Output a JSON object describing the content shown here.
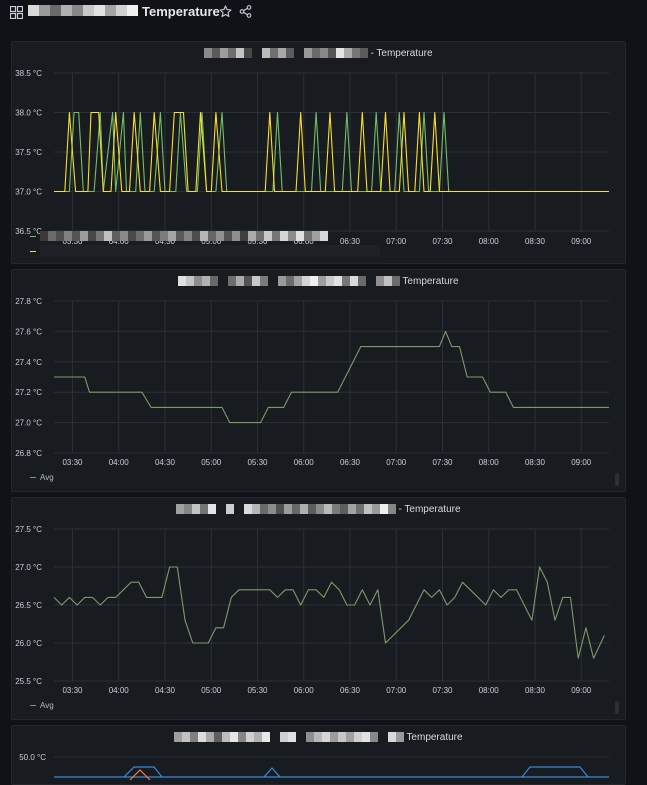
{
  "header": {
    "title": "Temperature",
    "icons": {
      "apps": "apps-icon",
      "star": "star-icon",
      "share": "share-icon"
    }
  },
  "colors": {
    "background": "#111217",
    "panel": "#181b1f",
    "grid": "#2c2f35",
    "green": "#73bf69",
    "yellow": "#fade2a",
    "green_dim": "#7b9c6a",
    "yellow_dim": "#c9a84a",
    "blue": "#3a8ad6",
    "orange": "#ff7a3d"
  },
  "panels": [
    {
      "title": "- Temperature",
      "legend": []
    },
    {
      "title": "Temperature",
      "legend": [
        "Avg"
      ]
    },
    {
      "title": "- Temperature",
      "legend": [
        "Avg"
      ]
    },
    {
      "title": "Temperature",
      "legend": []
    }
  ],
  "chart_data": [
    {
      "type": "line",
      "x_ticks": [
        "03:30",
        "04:00",
        "04:30",
        "05:00",
        "05:30",
        "06:00",
        "06:30",
        "07:00",
        "07:30",
        "08:00",
        "08:30",
        "09:00"
      ],
      "y_ticks": [
        "36.5 °C",
        "37.0 °C",
        "37.5 °C",
        "38.0 °C",
        "38.5 °C"
      ],
      "ylim": [
        36.5,
        38.5
      ],
      "xlim": [
        "03:18",
        "09:18"
      ],
      "series": [
        {
          "color": "green",
          "points": [
            [
              "03:18",
              37
            ],
            [
              "03:28",
              37
            ],
            [
              "03:31",
              38
            ],
            [
              "03:34",
              38
            ],
            [
              "03:37",
              37
            ],
            [
              "03:44",
              37
            ],
            [
              "03:48",
              38
            ],
            [
              "03:50",
              37
            ],
            [
              "03:56",
              38
            ],
            [
              "03:58",
              37
            ],
            [
              "04:03",
              38
            ],
            [
              "04:05",
              37
            ],
            [
              "04:11",
              37
            ],
            [
              "04:14",
              38
            ],
            [
              "04:17",
              37
            ],
            [
              "04:23",
              37
            ],
            [
              "04:27",
              38
            ],
            [
              "04:30",
              37
            ],
            [
              "04:37",
              37
            ],
            [
              "04:40",
              38
            ],
            [
              "04:44",
              37
            ],
            [
              "04:51",
              37
            ],
            [
              "04:54",
              38
            ],
            [
              "04:57",
              37
            ],
            [
              "05:03",
              37
            ],
            [
              "05:07",
              38
            ],
            [
              "05:10",
              37
            ],
            [
              "05:40",
              37
            ],
            [
              "05:43",
              38
            ],
            [
              "05:46",
              37
            ],
            [
              "06:05",
              37
            ],
            [
              "06:08",
              38
            ],
            [
              "06:11",
              37
            ],
            [
              "06:25",
              37
            ],
            [
              "06:28",
              38
            ],
            [
              "06:31",
              37
            ],
            [
              "06:44",
              37
            ],
            [
              "06:47",
              38
            ],
            [
              "06:50",
              37
            ],
            [
              "06:59",
              37
            ],
            [
              "07:02",
              38
            ],
            [
              "07:05",
              37
            ],
            [
              "07:15",
              37
            ],
            [
              "07:18",
              38
            ],
            [
              "07:21",
              37
            ],
            [
              "07:28",
              37
            ],
            [
              "07:31",
              38
            ],
            [
              "07:34",
              37
            ],
            [
              "09:18",
              37
            ]
          ]
        },
        {
          "color": "yellow",
          "points": [
            [
              "03:18",
              37
            ],
            [
              "03:25",
              37
            ],
            [
              "03:28",
              38
            ],
            [
              "03:32",
              37
            ],
            [
              "03:40",
              37
            ],
            [
              "03:42",
              38
            ],
            [
              "03:47",
              38
            ],
            [
              "03:50",
              37
            ],
            [
              "03:55",
              37
            ],
            [
              "03:58",
              38
            ],
            [
              "04:02",
              37
            ],
            [
              "04:07",
              37
            ],
            [
              "04:10",
              38
            ],
            [
              "04:14",
              37
            ],
            [
              "04:20",
              37
            ],
            [
              "04:23",
              38
            ],
            [
              "04:27",
              37
            ],
            [
              "04:33",
              37
            ],
            [
              "04:36",
              38
            ],
            [
              "04:42",
              38
            ],
            [
              "04:45",
              37
            ],
            [
              "04:50",
              37
            ],
            [
              "04:53",
              38
            ],
            [
              "04:57",
              37
            ],
            [
              "05:00",
              37
            ],
            [
              "05:03",
              38
            ],
            [
              "05:07",
              37
            ],
            [
              "05:35",
              37
            ],
            [
              "05:38",
              38
            ],
            [
              "05:41",
              37
            ],
            [
              "05:55",
              37
            ],
            [
              "05:58",
              38
            ],
            [
              "06:01",
              37
            ],
            [
              "06:14",
              37
            ],
            [
              "06:17",
              38
            ],
            [
              "06:20",
              37
            ],
            [
              "06:35",
              37
            ],
            [
              "06:38",
              38
            ],
            [
              "06:41",
              37
            ],
            [
              "06:50",
              37
            ],
            [
              "06:53",
              38
            ],
            [
              "06:56",
              37
            ],
            [
              "07:02",
              37
            ],
            [
              "07:05",
              38
            ],
            [
              "07:08",
              37
            ],
            [
              "07:12",
              37
            ],
            [
              "07:15",
              38
            ],
            [
              "07:18",
              37
            ],
            [
              "07:22",
              37
            ],
            [
              "07:25",
              38
            ],
            [
              "07:28",
              37
            ],
            [
              "09:18",
              37
            ]
          ]
        }
      ]
    },
    {
      "type": "line",
      "x_ticks": [
        "03:30",
        "04:00",
        "04:30",
        "05:00",
        "05:30",
        "06:00",
        "06:30",
        "07:00",
        "07:30",
        "08:00",
        "08:30",
        "09:00"
      ],
      "y_ticks": [
        "26.8 °C",
        "27.0 °C",
        "27.2 °C",
        "27.4 °C",
        "27.6 °C",
        "27.8 °C"
      ],
      "ylim": [
        26.8,
        27.8
      ],
      "xlim": [
        "03:18",
        "09:18"
      ],
      "legend": "bottom-left",
      "series": [
        {
          "name": "Avg",
          "color": "green_dim",
          "points": [
            [
              "03:18",
              27.3
            ],
            [
              "03:38",
              27.3
            ],
            [
              "03:41",
              27.2
            ],
            [
              "04:15",
              27.2
            ],
            [
              "04:21",
              27.1
            ],
            [
              "05:07",
              27.1
            ],
            [
              "05:12",
              27.0
            ],
            [
              "05:32",
              27.0
            ],
            [
              "05:37",
              27.1
            ],
            [
              "05:47",
              27.1
            ],
            [
              "05:52",
              27.2
            ],
            [
              "06:22",
              27.2
            ],
            [
              "06:37",
              27.5
            ],
            [
              "07:28",
              27.5
            ],
            [
              "07:32",
              27.6
            ],
            [
              "07:36",
              27.5
            ],
            [
              "07:41",
              27.5
            ],
            [
              "07:46",
              27.3
            ],
            [
              "07:56",
              27.3
            ],
            [
              "08:01",
              27.2
            ],
            [
              "08:11",
              27.2
            ],
            [
              "08:16",
              27.1
            ],
            [
              "09:18",
              27.1
            ]
          ]
        }
      ]
    },
    {
      "type": "line",
      "x_ticks": [
        "03:30",
        "04:00",
        "04:30",
        "05:00",
        "05:30",
        "06:00",
        "06:30",
        "07:00",
        "07:30",
        "08:00",
        "08:30",
        "09:00"
      ],
      "y_ticks": [
        "25.5 °C",
        "26.0 °C",
        "26.5 °C",
        "27.0 °C",
        "27.5 °C"
      ],
      "ylim": [
        25.5,
        27.5
      ],
      "xlim": [
        "03:18",
        "09:18"
      ],
      "legend": "bottom-left",
      "series": [
        {
          "name": "Avg",
          "color": "green_dim",
          "points": [
            [
              "03:18",
              26.6
            ],
            [
              "03:23",
              26.5
            ],
            [
              "03:28",
              26.6
            ],
            [
              "03:33",
              26.5
            ],
            [
              "03:38",
              26.6
            ],
            [
              "03:43",
              26.6
            ],
            [
              "03:48",
              26.5
            ],
            [
              "03:53",
              26.6
            ],
            [
              "03:58",
              26.6
            ],
            [
              "04:03",
              26.7
            ],
            [
              "04:08",
              26.8
            ],
            [
              "04:13",
              26.8
            ],
            [
              "04:18",
              26.6
            ],
            [
              "04:28",
              26.6
            ],
            [
              "04:33",
              27.0
            ],
            [
              "04:38",
              27.0
            ],
            [
              "04:43",
              26.3
            ],
            [
              "04:48",
              26.0
            ],
            [
              "04:58",
              26.0
            ],
            [
              "05:03",
              26.2
            ],
            [
              "05:08",
              26.2
            ],
            [
              "05:13",
              26.6
            ],
            [
              "05:18",
              26.7
            ],
            [
              "05:38",
              26.7
            ],
            [
              "05:43",
              26.6
            ],
            [
              "05:48",
              26.7
            ],
            [
              "05:53",
              26.7
            ],
            [
              "05:58",
              26.5
            ],
            [
              "06:03",
              26.7
            ],
            [
              "06:08",
              26.7
            ],
            [
              "06:13",
              26.6
            ],
            [
              "06:18",
              26.8
            ],
            [
              "06:23",
              26.7
            ],
            [
              "06:28",
              26.5
            ],
            [
              "06:33",
              26.5
            ],
            [
              "06:38",
              26.7
            ],
            [
              "06:43",
              26.5
            ],
            [
              "06:48",
              26.7
            ],
            [
              "06:53",
              26.0
            ],
            [
              "07:08",
              26.3
            ],
            [
              "07:13",
              26.5
            ],
            [
              "07:18",
              26.7
            ],
            [
              "07:23",
              26.6
            ],
            [
              "07:28",
              26.7
            ],
            [
              "07:33",
              26.5
            ],
            [
              "07:38",
              26.6
            ],
            [
              "07:43",
              26.8
            ],
            [
              "07:48",
              26.7
            ],
            [
              "07:58",
              26.5
            ],
            [
              "08:03",
              26.7
            ],
            [
              "08:08",
              26.6
            ],
            [
              "08:13",
              26.7
            ],
            [
              "08:18",
              26.7
            ],
            [
              "08:23",
              26.5
            ],
            [
              "08:28",
              26.3
            ],
            [
              "08:33",
              27.0
            ],
            [
              "08:38",
              26.8
            ],
            [
              "08:43",
              26.3
            ],
            [
              "08:48",
              26.6
            ],
            [
              "08:53",
              26.6
            ],
            [
              "08:58",
              25.8
            ],
            [
              "09:03",
              26.2
            ],
            [
              "09:08",
              25.8
            ],
            [
              "09:15",
              26.1
            ]
          ]
        }
      ]
    },
    {
      "type": "line",
      "y_ticks": [
        "50.0 °C"
      ],
      "ylim": [
        47.5,
        50.0
      ],
      "partial": true
    }
  ]
}
